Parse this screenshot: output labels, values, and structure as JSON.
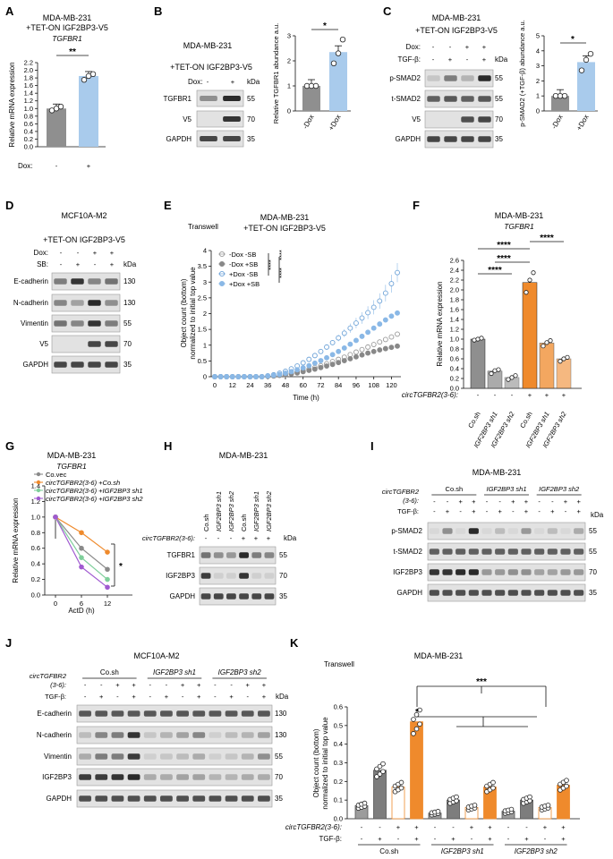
{
  "colors": {
    "grey": "#8f8f8f",
    "blue": "#a9cbec",
    "orange": "#ef8a2c",
    "green": "#7fcf9b",
    "purple": "#a05ad0",
    "dark": "#333333",
    "blot_bg": "#e2e2e2",
    "band": "#2a2a2a"
  },
  "panelA": {
    "letter": "A",
    "title1": "MDA-MB-231",
    "title2": "+TET-ON IGF2BP3-V5",
    "gene": "TGFBR1",
    "ylabel": "Relative mRNA expression",
    "sig": "**",
    "row_label": "Dox:",
    "row_values": [
      "-",
      "+"
    ]
  },
  "panelB": {
    "letter": "B",
    "title1": "MDA-MB-231",
    "title2": "+TET-ON IGF2BP3-V5",
    "row_label": "Dox:",
    "row_values": [
      "-",
      "+"
    ],
    "kda": "kDa",
    "bands": [
      {
        "name": "TGFBR1",
        "kda": "55"
      },
      {
        "name": "V5",
        "kda": "70"
      },
      {
        "name": "GAPDH",
        "kda": "35"
      }
    ],
    "ylabel": "Relative TGFBR1 abundance a.u.",
    "sig": "*"
  },
  "panelC": {
    "letter": "C",
    "title1": "MDA-MB-231",
    "title2": "+TET-ON IGF2BP3-V5",
    "dox_label": "Dox:",
    "dox": [
      "-",
      "-",
      "+",
      "+"
    ],
    "tgf_label": "TGF-β:",
    "tgf": [
      "-",
      "+",
      "-",
      "+"
    ],
    "kda": "kDa",
    "bands": [
      {
        "name": "p-SMAD2",
        "kda": "55"
      },
      {
        "name": "t-SMAD2",
        "kda": "55"
      },
      {
        "name": "V5",
        "kda": "70"
      },
      {
        "name": "GAPDH",
        "kda": "35"
      }
    ],
    "ylabel": "p-SMAD2 (+TGF-β) abundance a.u.",
    "sig": "*"
  },
  "panelD": {
    "letter": "D",
    "title1": "MCF10A-M2",
    "title2": "+TET-ON IGF2BP3-V5",
    "dox_label": "Dox:",
    "dox": [
      "-",
      "-",
      "+",
      "+"
    ],
    "sb_label": "SB:",
    "sb": [
      "-",
      "+",
      "-",
      "+"
    ],
    "kda": "kDa",
    "bands": [
      {
        "name": "E-cadherin",
        "kda": "130"
      },
      {
        "name": "N-cadherin",
        "kda": "130"
      },
      {
        "name": "Vimentin",
        "kda": "55"
      },
      {
        "name": "V5",
        "kda": "70"
      },
      {
        "name": "GAPDH",
        "kda": "35"
      }
    ]
  },
  "panelE": {
    "letter": "E",
    "corner": "Transwell",
    "title1": "MDA-MB-231",
    "title2": "+TET-ON IGF2BP3-V5",
    "ylabel1": "Object count (bottom)",
    "ylabel2": "normalized to initial top value",
    "legend": [
      "-Dox -SB",
      "-Dox +SB",
      "+Dox -SB",
      "+Dox +SB"
    ],
    "sig": [
      "****",
      "****",
      "****"
    ]
  },
  "panelF": {
    "letter": "F",
    "title1": "MDA-MB-231",
    "gene": "TGFBR1",
    "ylabel": "Relative mRNA expression",
    "circ_label": "circTGFBR2(3-6):",
    "circ": [
      "-",
      "-",
      "-",
      "+",
      "+",
      "+"
    ],
    "sig": [
      "****",
      "****",
      "****",
      "****"
    ]
  },
  "panelG": {
    "letter": "G",
    "title1": "MDA-MB-231",
    "gene": "TGFBR1",
    "ylabel": "Relative mRNA expression",
    "legend": [
      "Co.vec",
      "circTGFBR2(3-6) +Co.sh",
      "circTGFBR2(3-6) +IGF2BP3 sh1",
      "circTGFBR2(3-6) +IGF2BP3 sh2"
    ],
    "sig": "*"
  },
  "panelH": {
    "letter": "H",
    "title1": "MDA-MB-231",
    "lanes": [
      "Co.sh",
      "IGF2BP3 sh1",
      "IGF2BP3 sh2",
      "Co.sh",
      "IGF2BP3 sh1",
      "IGF2BP3 sh2"
    ],
    "circ_label": "circTGFBR2(3-6):",
    "circ": [
      "-",
      "-",
      "-",
      "+",
      "+",
      "+"
    ],
    "kda": "kDa",
    "bands": [
      {
        "name": "TGFBR1",
        "kda": "55"
      },
      {
        "name": "IGF2BP3",
        "kda": "70"
      },
      {
        "name": "GAPDH",
        "kda": "35"
      }
    ]
  },
  "panelI": {
    "letter": "I",
    "title1": "MDA-MB-231",
    "groups": [
      "Co.sh",
      "IGF2BP3 sh1",
      "IGF2BP3 sh2"
    ],
    "circ_label1": "circTGFBR2",
    "circ_label2": "(3-6):",
    "circ": [
      "-",
      "-",
      "+",
      "+",
      "-",
      "-",
      "+",
      "+",
      "-",
      "-",
      "+",
      "+"
    ],
    "tgf_label": "TGF-β:",
    "tgf": [
      "-",
      "+",
      "-",
      "+",
      "-",
      "+",
      "-",
      "+",
      "-",
      "+",
      "-",
      "+"
    ],
    "kda": "kDa",
    "bands": [
      {
        "name": "p-SMAD2",
        "kda": "55"
      },
      {
        "name": "t-SMAD2",
        "kda": "55"
      },
      {
        "name": "IGF2BP3",
        "kda": "70"
      },
      {
        "name": "GAPDH",
        "kda": "35"
      }
    ]
  },
  "panelJ": {
    "letter": "J",
    "title1": "MCF10A-M2",
    "groups": [
      "Co.sh",
      "IGF2BP3 sh1",
      "IGF2BP3 sh2"
    ],
    "circ_label1": "circTGFBR2",
    "circ_label2": "(3-6):",
    "circ": [
      "-",
      "-",
      "+",
      "+",
      "-",
      "-",
      "+",
      "+",
      "-",
      "-",
      "+",
      "+"
    ],
    "tgf_label": "TGF-β:",
    "tgf": [
      "-",
      "+",
      "-",
      "+",
      "-",
      "+",
      "-",
      "+",
      "-",
      "+",
      "-",
      "+"
    ],
    "kda": "kDa",
    "bands": [
      {
        "name": "E-cadherin",
        "kda": "130"
      },
      {
        "name": "N-cadherin",
        "kda": "130"
      },
      {
        "name": "Vimentin",
        "kda": "55"
      },
      {
        "name": "IGF2BP3",
        "kda": "70"
      },
      {
        "name": "GAPDH",
        "kda": "35"
      }
    ]
  },
  "panelK": {
    "letter": "K",
    "corner": "Transwell",
    "title1": "MDA-MB-231",
    "ylabel1": "Object count (bottom)",
    "ylabel2": "normalized to initial top value",
    "circ_label": "circTGFBR2(3-6):",
    "circ": [
      "-",
      "-",
      "+",
      "+",
      "-",
      "-",
      "+",
      "+",
      "-",
      "-",
      "+",
      "+"
    ],
    "tgf_label": "TGF-β:",
    "tgf": [
      "-",
      "+",
      "-",
      "+",
      "-",
      "+",
      "-",
      "+",
      "-",
      "+",
      "-",
      "+"
    ],
    "groups": [
      "Co.sh",
      "IGF2BP3 sh1",
      "IGF2BP3 sh2"
    ],
    "sig": [
      "***",
      "*"
    ]
  },
  "chart_data": [
    {
      "id": "A",
      "type": "bar",
      "categories": [
        "-",
        "+"
      ],
      "values": [
        1.0,
        1.85
      ],
      "points": [
        [
          0.95,
          1.0,
          1.05
        ],
        [
          1.75,
          1.85,
          1.9
        ]
      ],
      "ylim": [
        0,
        2.2
      ],
      "yticks": [
        0,
        0.2,
        0.4,
        0.6,
        0.8,
        1.0,
        1.2,
        1.4,
        1.6,
        1.8,
        2.0,
        2.2
      ],
      "xlabel": "Dox",
      "ylabel": "Relative mRNA expression"
    },
    {
      "id": "B",
      "type": "bar",
      "categories": [
        "-Dox",
        "+Dox"
      ],
      "values": [
        1.0,
        2.35
      ],
      "points": [
        [
          1,
          1,
          1
        ],
        [
          1.9,
          2.3,
          2.85
        ]
      ],
      "ylim": [
        0,
        3
      ],
      "yticks": [
        0,
        1,
        2,
        3
      ],
      "ylabel": "Relative TGFBR1 abundance a.u."
    },
    {
      "id": "C",
      "type": "bar",
      "categories": [
        "-Dox",
        "+Dox"
      ],
      "values": [
        1.0,
        3.25
      ],
      "points": [
        [
          1,
          1,
          1
        ],
        [
          2.7,
          3.4,
          3.8
        ]
      ],
      "ylim": [
        0,
        5
      ],
      "yticks": [
        0,
        1,
        2,
        3,
        4,
        5
      ],
      "ylabel": "p-SMAD2 (+TGF-β) abundance a.u."
    },
    {
      "id": "E",
      "type": "line",
      "x": [
        0,
        4,
        8,
        12,
        16,
        20,
        24,
        28,
        32,
        36,
        40,
        44,
        48,
        52,
        56,
        60,
        64,
        68,
        72,
        76,
        80,
        84,
        88,
        92,
        96,
        100,
        104,
        108,
        112,
        116,
        120,
        124
      ],
      "series": [
        {
          "name": "-Dox -SB",
          "values": [
            0,
            0,
            0,
            0,
            0,
            0,
            0,
            0,
            0,
            0.02,
            0.03,
            0.05,
            0.08,
            0.11,
            0.15,
            0.19,
            0.24,
            0.29,
            0.35,
            0.41,
            0.48,
            0.55,
            0.62,
            0.7,
            0.78,
            0.86,
            0.94,
            1.02,
            1.1,
            1.18,
            1.26,
            1.35
          ]
        },
        {
          "name": "-Dox +SB",
          "values": [
            0,
            0,
            0,
            0,
            0,
            0,
            0,
            0,
            0,
            0.01,
            0.02,
            0.04,
            0.06,
            0.09,
            0.12,
            0.16,
            0.2,
            0.24,
            0.29,
            0.34,
            0.39,
            0.45,
            0.51,
            0.57,
            0.63,
            0.69,
            0.75,
            0.8,
            0.85,
            0.89,
            0.93,
            0.97
          ]
        },
        {
          "name": "+Dox -SB",
          "values": [
            0,
            0,
            0,
            0,
            0,
            0,
            0,
            0,
            0,
            0.03,
            0.06,
            0.11,
            0.17,
            0.25,
            0.34,
            0.44,
            0.55,
            0.67,
            0.8,
            0.94,
            1.08,
            1.23,
            1.38,
            1.54,
            1.7,
            1.86,
            2.03,
            2.2,
            2.4,
            2.65,
            2.95,
            3.3
          ]
        },
        {
          "name": "+Dox +SB",
          "values": [
            0,
            0,
            0,
            0,
            0,
            0,
            0,
            0,
            0,
            0.02,
            0.04,
            0.07,
            0.11,
            0.16,
            0.22,
            0.28,
            0.35,
            0.43,
            0.51,
            0.6,
            0.7,
            0.8,
            0.91,
            1.03,
            1.15,
            1.28,
            1.41,
            1.54,
            1.67,
            1.8,
            1.92,
            2.02
          ]
        }
      ],
      "ylim": [
        0,
        4
      ],
      "yticks": [
        0,
        0.5,
        1,
        1.5,
        2,
        2.5,
        3,
        3.5,
        4
      ],
      "xticks": [
        0,
        12,
        24,
        36,
        48,
        60,
        72,
        84,
        96,
        108,
        120
      ],
      "xlabel": "Time (h)",
      "ylabel": "Object count (bottom) normalized to initial top value"
    },
    {
      "id": "F",
      "type": "bar",
      "categories": [
        "Co.sh",
        "IGF2BP3 sh1",
        "IGF2BP3 sh2",
        "Co.sh",
        "IGF2BP3 sh1",
        "IGF2BP3 sh2"
      ],
      "values": [
        1.0,
        0.35,
        0.22,
        2.15,
        0.92,
        0.6
      ],
      "points": [
        [
          0.98,
          1.0,
          1.02
        ],
        [
          0.3,
          0.36,
          0.38
        ],
        [
          0.18,
          0.22,
          0.26
        ],
        [
          1.95,
          2.2,
          2.35
        ],
        [
          0.86,
          0.93,
          0.97
        ],
        [
          0.55,
          0.6,
          0.63
        ]
      ],
      "ylim": [
        0,
        2.6
      ],
      "yticks": [
        0,
        0.2,
        0.4,
        0.6,
        0.8,
        1.0,
        1.2,
        1.4,
        1.6,
        1.8,
        2.0,
        2.2,
        2.4,
        2.6
      ],
      "ylabel": "Relative mRNA expression"
    },
    {
      "id": "G",
      "type": "line",
      "x": [
        0,
        6,
        12
      ],
      "series": [
        {
          "name": "Co.vec",
          "values": [
            1.0,
            0.6,
            0.33
          ]
        },
        {
          "name": "circTGFBR2(3-6) +Co.sh",
          "values": [
            1.0,
            0.8,
            0.55
          ]
        },
        {
          "name": "circTGFBR2(3-6) +IGF2BP3 sh1",
          "values": [
            1.0,
            0.48,
            0.2
          ]
        },
        {
          "name": "circTGFBR2(3-6) +IGF2BP3 sh2",
          "values": [
            1.0,
            0.36,
            0.1
          ]
        }
      ],
      "ylim": [
        0,
        1.4
      ],
      "yticks": [
        0,
        0.2,
        0.4,
        0.6,
        0.8,
        1.0,
        1.2,
        1.4
      ],
      "xticks": [
        0,
        6,
        12
      ],
      "xlabel": "ActD (h)",
      "ylabel": "Relative mRNA expression"
    },
    {
      "id": "K",
      "type": "bar",
      "values": [
        0.07,
        0.26,
        0.17,
        0.52,
        0.03,
        0.1,
        0.06,
        0.17,
        0.04,
        0.1,
        0.06,
        0.18
      ],
      "ylim": [
        0,
        0.6
      ],
      "yticks": [
        0,
        0.1,
        0.2,
        0.3,
        0.4,
        0.5,
        0.6
      ],
      "ylabel": "Object count (bottom) normalized to initial top value"
    }
  ]
}
